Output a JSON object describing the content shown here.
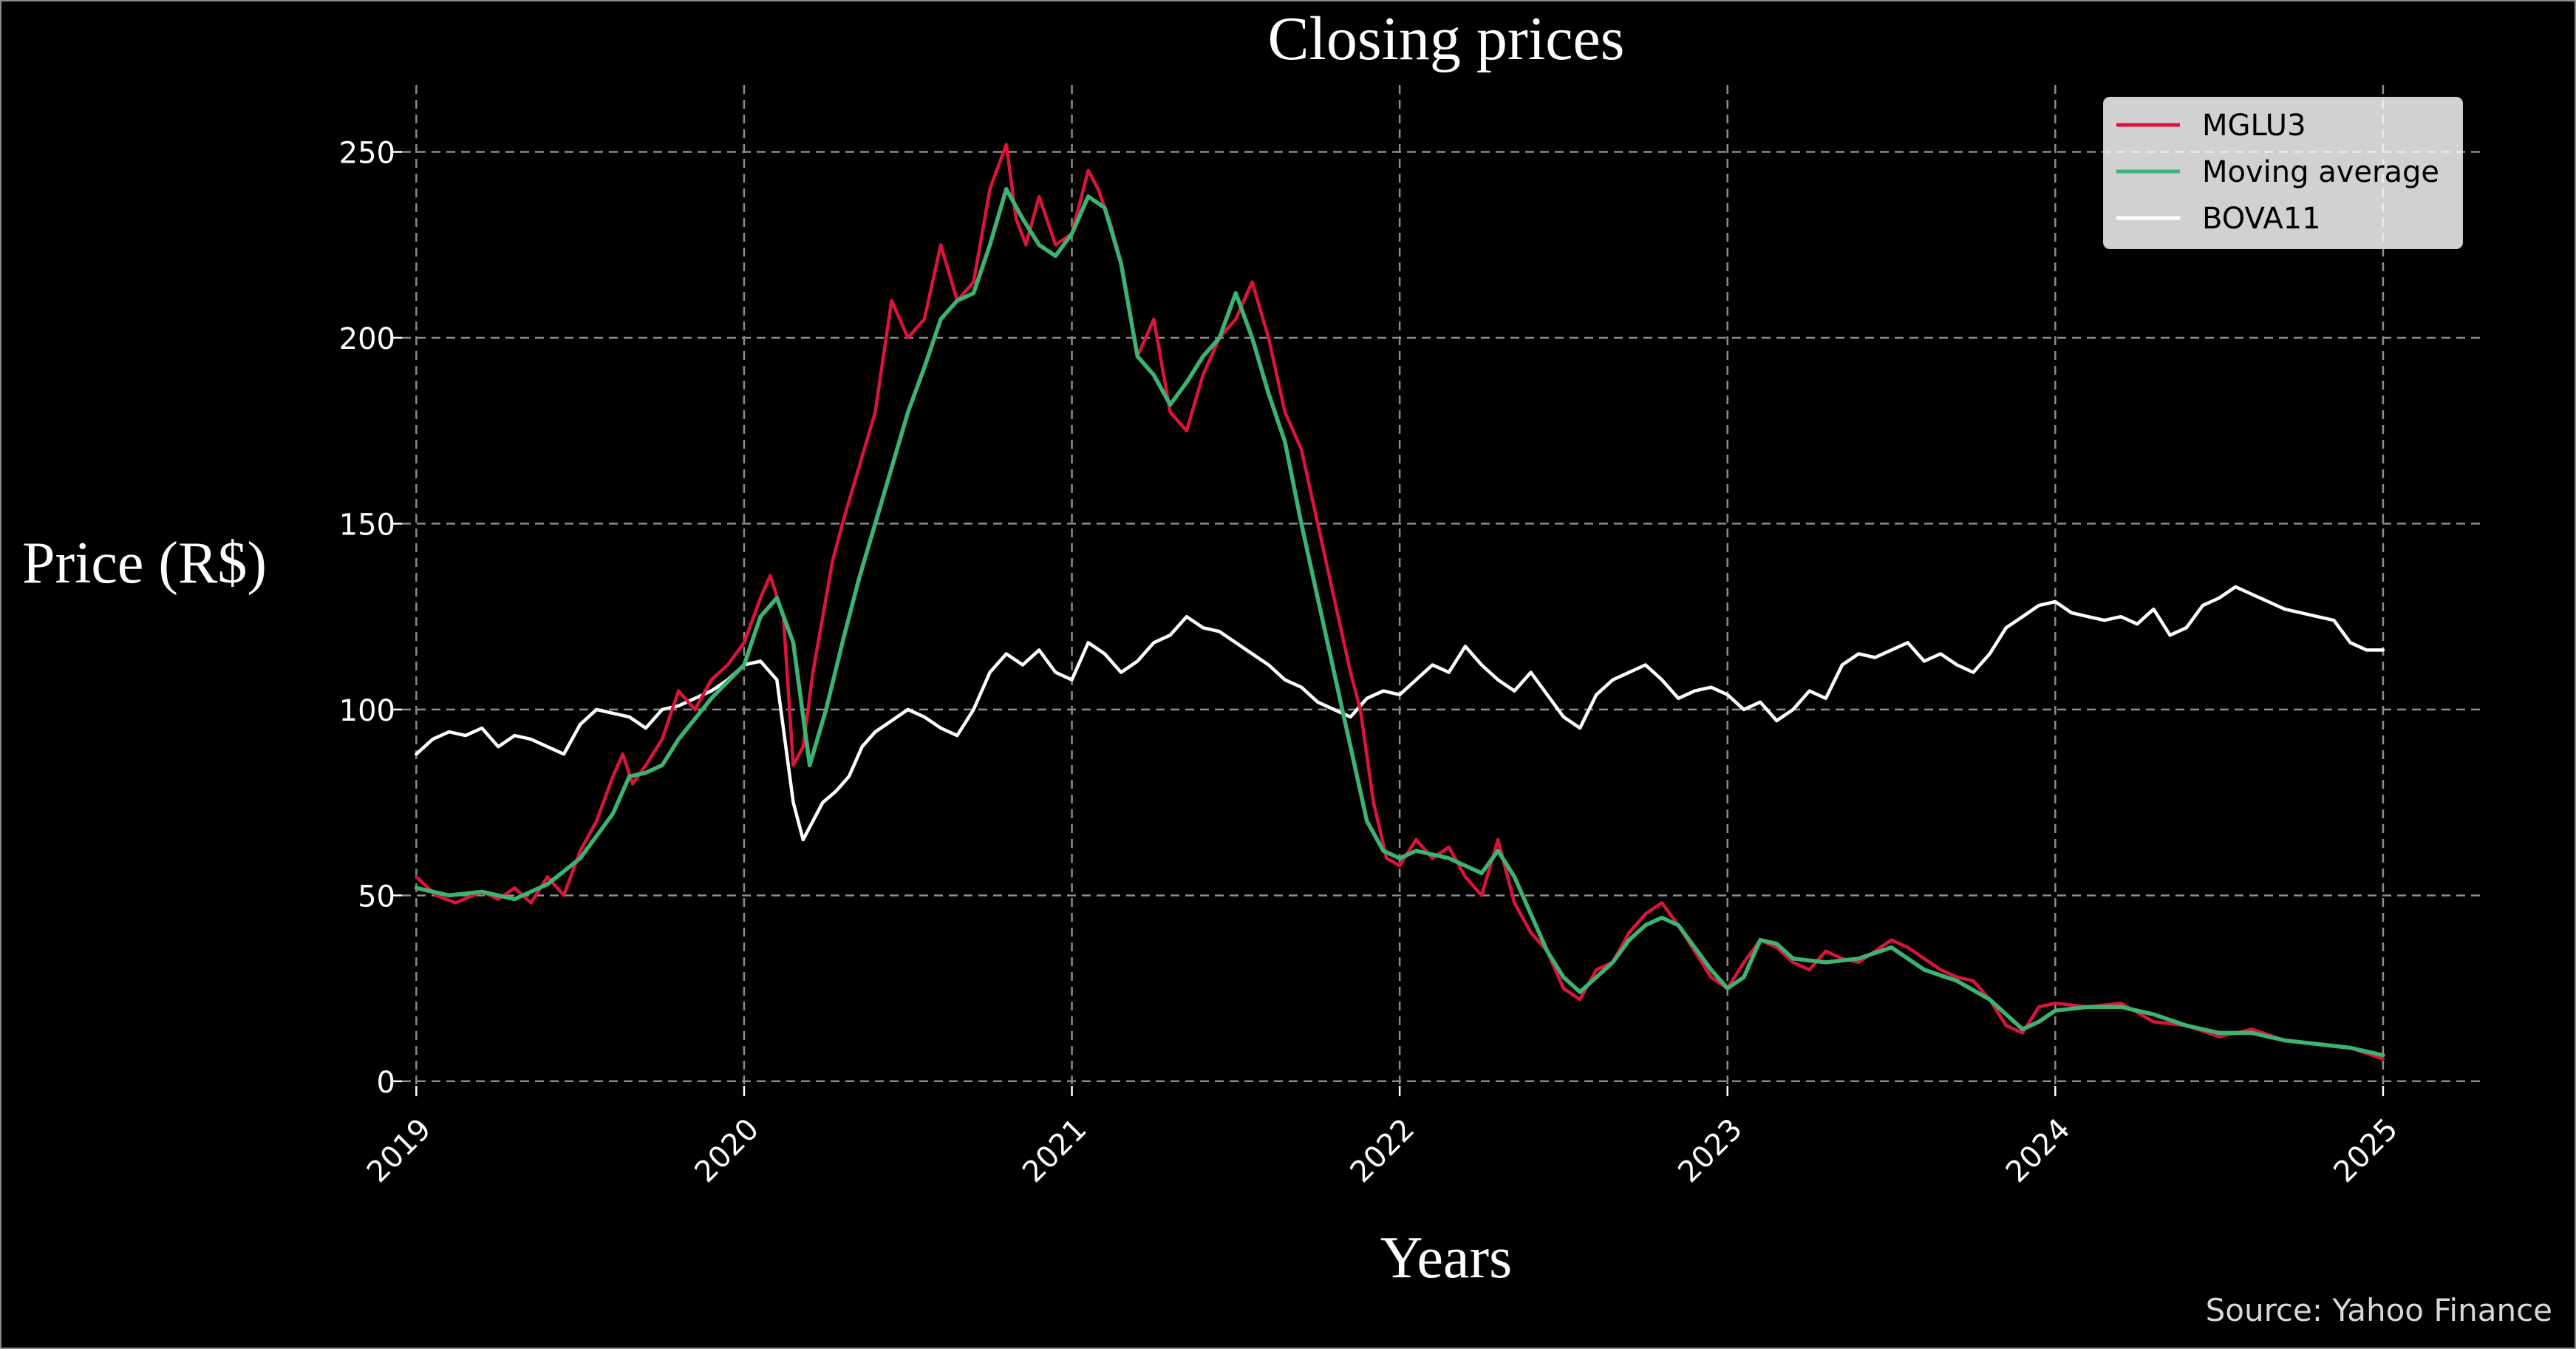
{
  "chart_data": {
    "type": "line",
    "title": "Closing prices",
    "xlabel": "Years",
    "ylabel": "Price (R$)",
    "source": "Source: Yahoo Finance",
    "xlim": [
      2018.9,
      2025.3
    ],
    "ylim": [
      -7,
      268
    ],
    "x_ticks": [
      2019,
      2020,
      2021,
      2022,
      2023,
      2024,
      2025
    ],
    "x_tick_labels": [
      "2019",
      "2020",
      "2021",
      "2022",
      "2023",
      "2024",
      "2025"
    ],
    "y_ticks": [
      0,
      50,
      100,
      150,
      200,
      250
    ],
    "y_tick_labels": [
      "0",
      "50",
      "100",
      "150",
      "200",
      "250"
    ],
    "grid": true,
    "legend_position": "top-right",
    "series": [
      {
        "name": "MGLU3",
        "color": "#dc143c",
        "x": [
          2019.0,
          2019.06,
          2019.12,
          2019.2,
          2019.25,
          2019.3,
          2019.35,
          2019.4,
          2019.45,
          2019.5,
          2019.55,
          2019.6,
          2019.63,
          2019.66,
          2019.7,
          2019.75,
          2019.8,
          2019.85,
          2019.9,
          2019.95,
          2020.0,
          2020.05,
          2020.08,
          2020.12,
          2020.15,
          2020.18,
          2020.21,
          2020.24,
          2020.27,
          2020.3,
          2020.35,
          2020.4,
          2020.45,
          2020.5,
          2020.55,
          2020.6,
          2020.65,
          2020.7,
          2020.75,
          2020.8,
          2020.83,
          2020.86,
          2020.9,
          2020.95,
          2021.0,
          2021.05,
          2021.08,
          2021.12,
          2021.15,
          2021.2,
          2021.25,
          2021.3,
          2021.35,
          2021.4,
          2021.45,
          2021.5,
          2021.55,
          2021.6,
          2021.65,
          2021.7,
          2021.75,
          2021.8,
          2021.85,
          2021.88,
          2021.92,
          2021.96,
          2022.0,
          2022.05,
          2022.1,
          2022.15,
          2022.2,
          2022.25,
          2022.3,
          2022.35,
          2022.4,
          2022.45,
          2022.5,
          2022.55,
          2022.6,
          2022.65,
          2022.7,
          2022.75,
          2022.8,
          2022.85,
          2022.9,
          2022.95,
          2023.0,
          2023.05,
          2023.1,
          2023.15,
          2023.2,
          2023.25,
          2023.3,
          2023.35,
          2023.4,
          2023.45,
          2023.5,
          2023.55,
          2023.6,
          2023.65,
          2023.7,
          2023.75,
          2023.8,
          2023.85,
          2023.9,
          2023.95,
          2024.0,
          2024.1,
          2024.2,
          2024.3,
          2024.4,
          2024.5,
          2024.6,
          2024.7,
          2024.8,
          2024.9,
          2025.0
        ],
        "y": [
          55,
          50,
          48,
          51,
          49,
          52,
          48,
          55,
          50,
          62,
          70,
          82,
          88,
          80,
          85,
          92,
          105,
          100,
          108,
          112,
          118,
          130,
          136,
          125,
          85,
          90,
          110,
          125,
          140,
          150,
          165,
          180,
          210,
          200,
          205,
          225,
          210,
          215,
          240,
          252,
          232,
          225,
          238,
          225,
          228,
          245,
          240,
          230,
          220,
          195,
          205,
          180,
          175,
          190,
          200,
          205,
          215,
          200,
          180,
          170,
          150,
          130,
          110,
          100,
          75,
          60,
          58,
          65,
          60,
          63,
          55,
          50,
          65,
          48,
          40,
          35,
          25,
          22,
          30,
          32,
          40,
          45,
          48,
          42,
          35,
          28,
          25,
          32,
          38,
          36,
          32,
          30,
          35,
          33,
          32,
          35,
          38,
          36,
          33,
          30,
          28,
          27,
          22,
          15,
          13,
          20,
          21,
          20,
          21,
          16,
          15,
          12,
          14,
          11,
          10,
          9,
          6
        ]
      },
      {
        "name": "Moving average",
        "color": "#3cb371",
        "x": [
          2019.0,
          2019.1,
          2019.2,
          2019.3,
          2019.4,
          2019.5,
          2019.6,
          2019.65,
          2019.7,
          2019.75,
          2019.8,
          2019.9,
          2020.0,
          2020.05,
          2020.1,
          2020.15,
          2020.2,
          2020.25,
          2020.3,
          2020.35,
          2020.4,
          2020.45,
          2020.5,
          2020.55,
          2020.6,
          2020.65,
          2020.7,
          2020.75,
          2020.8,
          2020.85,
          2020.9,
          2020.95,
          2021.0,
          2021.05,
          2021.1,
          2021.15,
          2021.2,
          2021.25,
          2021.3,
          2021.35,
          2021.4,
          2021.45,
          2021.5,
          2021.55,
          2021.6,
          2021.65,
          2021.7,
          2021.75,
          2021.8,
          2021.85,
          2021.9,
          2021.95,
          2022.0,
          2022.05,
          2022.1,
          2022.15,
          2022.2,
          2022.25,
          2022.3,
          2022.35,
          2022.4,
          2022.45,
          2022.5,
          2022.55,
          2022.6,
          2022.65,
          2022.7,
          2022.75,
          2022.8,
          2022.85,
          2022.9,
          2022.95,
          2023.0,
          2023.05,
          2023.1,
          2023.15,
          2023.2,
          2023.3,
          2023.4,
          2023.5,
          2023.6,
          2023.7,
          2023.8,
          2023.85,
          2023.9,
          2023.95,
          2024.0,
          2024.1,
          2024.2,
          2024.3,
          2024.4,
          2024.5,
          2024.6,
          2024.7,
          2024.8,
          2024.9,
          2025.0
        ],
        "y": [
          52,
          50,
          51,
          49,
          53,
          60,
          72,
          82,
          83,
          85,
          92,
          103,
          112,
          125,
          130,
          118,
          85,
          100,
          118,
          135,
          150,
          165,
          180,
          192,
          205,
          210,
          212,
          225,
          240,
          232,
          225,
          222,
          228,
          238,
          235,
          220,
          195,
          190,
          182,
          188,
          195,
          200,
          212,
          200,
          185,
          172,
          150,
          130,
          110,
          90,
          70,
          62,
          60,
          62,
          61,
          60,
          58,
          56,
          62,
          55,
          45,
          35,
          28,
          24,
          28,
          32,
          38,
          42,
          44,
          42,
          36,
          30,
          25,
          28,
          38,
          37,
          33,
          32,
          33,
          36,
          30,
          27,
          22,
          18,
          14,
          16,
          19,
          20,
          20,
          18,
          15,
          13,
          13,
          11,
          10,
          9,
          7
        ]
      },
      {
        "name": "BOVA11",
        "color": "#ffffff",
        "x": [
          2019.0,
          2019.05,
          2019.1,
          2019.15,
          2019.2,
          2019.25,
          2019.3,
          2019.35,
          2019.4,
          2019.45,
          2019.5,
          2019.55,
          2019.6,
          2019.65,
          2019.7,
          2019.75,
          2019.8,
          2019.85,
          2019.9,
          2019.95,
          2020.0,
          2020.05,
          2020.1,
          2020.15,
          2020.18,
          2020.21,
          2020.24,
          2020.28,
          2020.32,
          2020.36,
          2020.4,
          2020.45,
          2020.5,
          2020.55,
          2020.6,
          2020.65,
          2020.7,
          2020.75,
          2020.8,
          2020.85,
          2020.9,
          2020.95,
          2021.0,
          2021.05,
          2021.1,
          2021.15,
          2021.2,
          2021.25,
          2021.3,
          2021.35,
          2021.4,
          2021.45,
          2021.5,
          2021.55,
          2021.6,
          2021.65,
          2021.7,
          2021.75,
          2021.8,
          2021.85,
          2021.9,
          2021.95,
          2022.0,
          2022.05,
          2022.1,
          2022.15,
          2022.2,
          2022.25,
          2022.3,
          2022.35,
          2022.4,
          2022.45,
          2022.5,
          2022.55,
          2022.6,
          2022.65,
          2022.7,
          2022.75,
          2022.8,
          2022.85,
          2022.9,
          2022.95,
          2023.0,
          2023.05,
          2023.1,
          2023.15,
          2023.2,
          2023.25,
          2023.3,
          2023.35,
          2023.4,
          2023.45,
          2023.5,
          2023.55,
          2023.6,
          2023.65,
          2023.7,
          2023.75,
          2023.8,
          2023.85,
          2023.9,
          2023.95,
          2024.0,
          2024.05,
          2024.1,
          2024.15,
          2024.2,
          2024.25,
          2024.3,
          2024.35,
          2024.4,
          2024.45,
          2024.5,
          2024.55,
          2024.6,
          2024.65,
          2024.7,
          2024.75,
          2024.8,
          2024.85,
          2024.9,
          2024.95,
          2025.0
        ],
        "y": [
          88,
          92,
          94,
          93,
          95,
          90,
          93,
          92,
          90,
          88,
          96,
          100,
          99,
          98,
          95,
          100,
          101,
          103,
          105,
          108,
          112,
          113,
          108,
          75,
          65,
          70,
          75,
          78,
          82,
          90,
          94,
          97,
          100,
          98,
          95,
          93,
          100,
          110,
          115,
          112,
          116,
          110,
          108,
          118,
          115,
          110,
          113,
          118,
          120,
          125,
          122,
          121,
          118,
          115,
          112,
          108,
          106,
          102,
          100,
          98,
          103,
          105,
          104,
          108,
          112,
          110,
          117,
          112,
          108,
          105,
          110,
          104,
          98,
          95,
          104,
          108,
          110,
          112,
          108,
          103,
          105,
          106,
          104,
          100,
          102,
          97,
          100,
          105,
          103,
          112,
          115,
          114,
          116,
          118,
          113,
          115,
          112,
          110,
          115,
          122,
          125,
          128,
          129,
          126,
          125,
          124,
          125,
          123,
          127,
          120,
          122,
          128,
          130,
          133,
          131,
          129,
          127,
          126,
          125,
          124,
          118,
          116,
          116
        ]
      }
    ]
  }
}
